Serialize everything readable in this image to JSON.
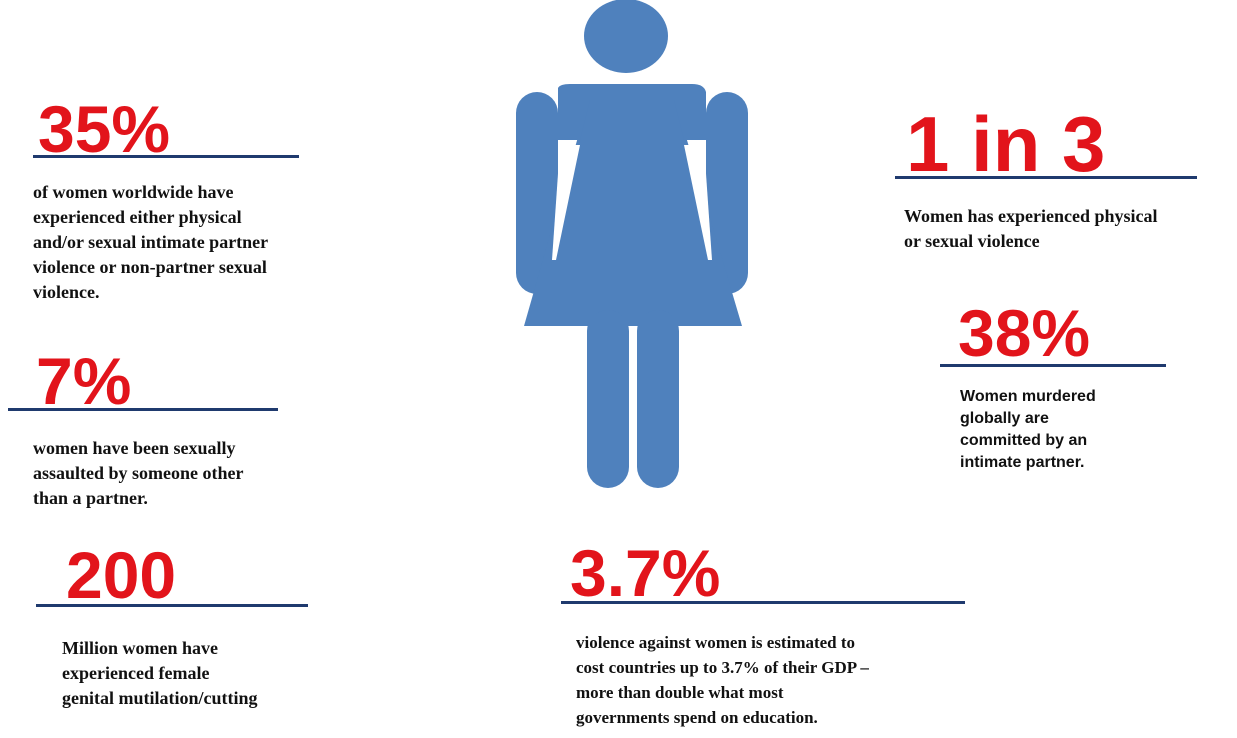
{
  "colors": {
    "stat_red": "#e2141b",
    "rule_navy": "#1f3a6e",
    "figure_blue": "#4f81bd"
  },
  "figure": {
    "icon": "woman-figure-icon"
  },
  "stats": {
    "s35": {
      "value": "35%",
      "text": "of women worldwide have\nexperienced either physical\nand/or sexual intimate partner\n violence or non-partner sexual\nviolence."
    },
    "s7": {
      "value": "7%",
      "text": "women have been sexually\nassaulted by someone other\nthan a partner."
    },
    "s200": {
      "value": "200",
      "text": "Million women have\nexperienced female\ngenital mutilation/cutting"
    },
    "s1in3": {
      "value": "1 in 3",
      "text": "Women has experienced physical\nor sexual violence"
    },
    "s38": {
      "value": "38%",
      "text": "Women murdered\nglobally are\ncommitted by an\nintimate partner."
    },
    "s37": {
      "value": "3.7%",
      "text": "violence against women is estimated to\ncost countries up to 3.7% of their GDP –\nmore than double what most\ngovernments spend on education."
    }
  }
}
